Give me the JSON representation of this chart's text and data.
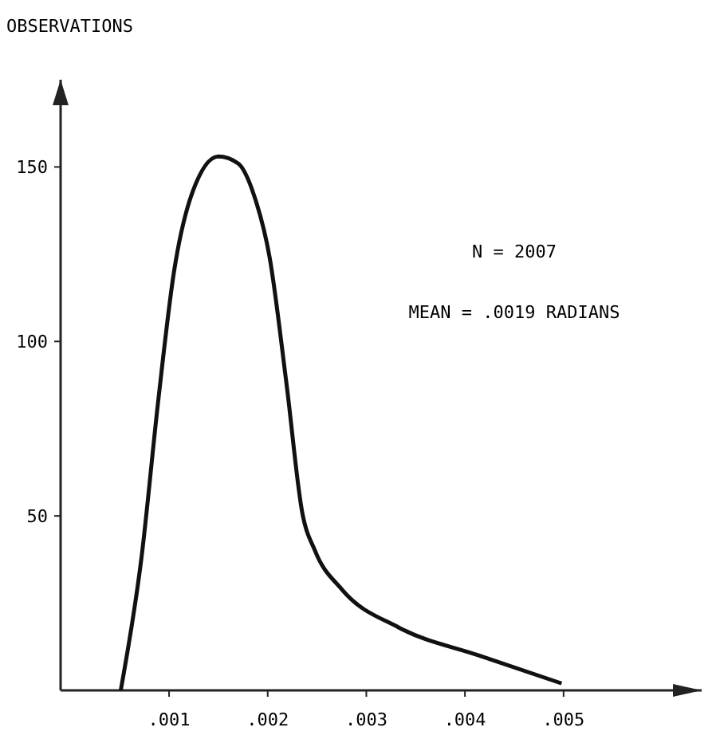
{
  "chart_data": {
    "type": "line",
    "ylabel": "OBSERVATIONS",
    "annotations": [
      "N = 2007",
      "MEAN = .0019 RADIANS"
    ],
    "xlim": [
      -0.0001,
      0.0064
    ],
    "ylim": [
      0,
      175
    ],
    "xticks": [
      {
        "value": 0.001,
        "label": ".001"
      },
      {
        "value": 0.002,
        "label": ".002"
      },
      {
        "value": 0.003,
        "label": ".003"
      },
      {
        "value": 0.004,
        "label": ".004"
      },
      {
        "value": 0.005,
        "label": ".005"
      }
    ],
    "yticks": [
      50,
      100,
      150
    ],
    "grid": false,
    "marker": "none",
    "line_style": "solid",
    "series": [
      {
        "color": "#111111",
        "x": [
          0.00051,
          0.00072,
          0.00089,
          0.00105,
          0.00124,
          0.0015,
          0.0017,
          0.00186,
          0.00202,
          0.00219,
          0.00235,
          0.00248,
          0.00275,
          0.00333,
          0.00414,
          0.00498
        ],
        "values": [
          0,
          38,
          83,
          120,
          143,
          153,
          151,
          142,
          124,
          88,
          51,
          40,
          29,
          18,
          10,
          2
        ]
      }
    ]
  }
}
